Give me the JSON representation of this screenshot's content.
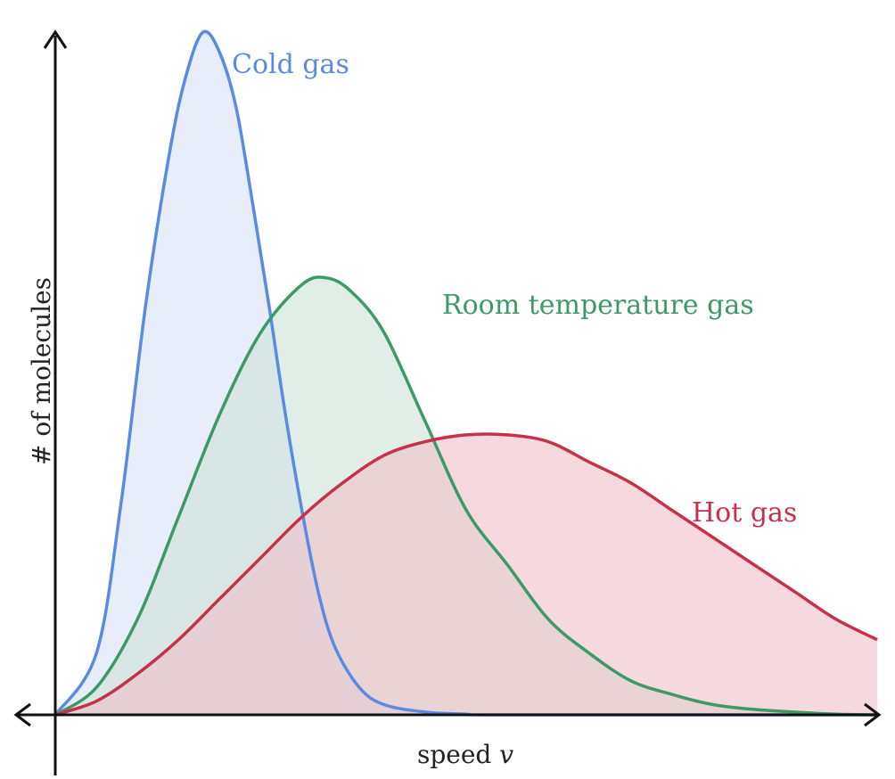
{
  "chart_data": {
    "type": "area",
    "xlabel": "speed",
    "xlabel_variable": "v",
    "ylabel": "# of molecules",
    "axes": {
      "x_arrow_both_ends": true,
      "y_arrow_up": true,
      "ticks": false,
      "grid": false
    },
    "xlim": [
      0,
      100
    ],
    "ylim": [
      0,
      100
    ],
    "series": [
      {
        "name": "Cold gas",
        "color": "#5b8be0",
        "fill": "#d9e2f6",
        "x": [
          0,
          5,
          8,
          11,
          14,
          16,
          18,
          20,
          22,
          24,
          26,
          28,
          30,
          32,
          34,
          37,
          40,
          45,
          50,
          55,
          100
        ],
        "y": [
          0,
          9,
          31,
          60,
          83,
          94,
          100,
          97,
          89,
          75,
          60,
          44,
          30,
          18,
          10,
          4,
          1.5,
          0.4,
          0.1,
          0,
          0
        ]
      },
      {
        "name": "Room temperature gas",
        "color": "#3d9a66",
        "fill": "#cfe3da",
        "x": [
          0,
          5,
          10,
          15,
          20,
          25,
          30,
          33,
          36,
          40,
          45,
          50,
          55,
          60,
          65,
          70,
          75,
          80,
          85,
          90,
          95,
          100
        ],
        "y": [
          0,
          4,
          14,
          29,
          44,
          56,
          63,
          64,
          62,
          56,
          43,
          30,
          22,
          14,
          9,
          5,
          3,
          1.5,
          0.8,
          0.4,
          0.1,
          0
        ]
      },
      {
        "name": "Hot gas",
        "color": "#c8304a",
        "fill": "#efc1c9",
        "x": [
          0,
          5,
          10,
          15,
          20,
          25,
          30,
          35,
          40,
          45,
          50,
          55,
          60,
          65,
          70,
          75,
          80,
          85,
          90,
          95,
          100
        ],
        "y": [
          0,
          2,
          6,
          11,
          17,
          23,
          29,
          34,
          38,
          40,
          41,
          41,
          40,
          37,
          34,
          30,
          26,
          22,
          18,
          14,
          11
        ]
      }
    ]
  }
}
